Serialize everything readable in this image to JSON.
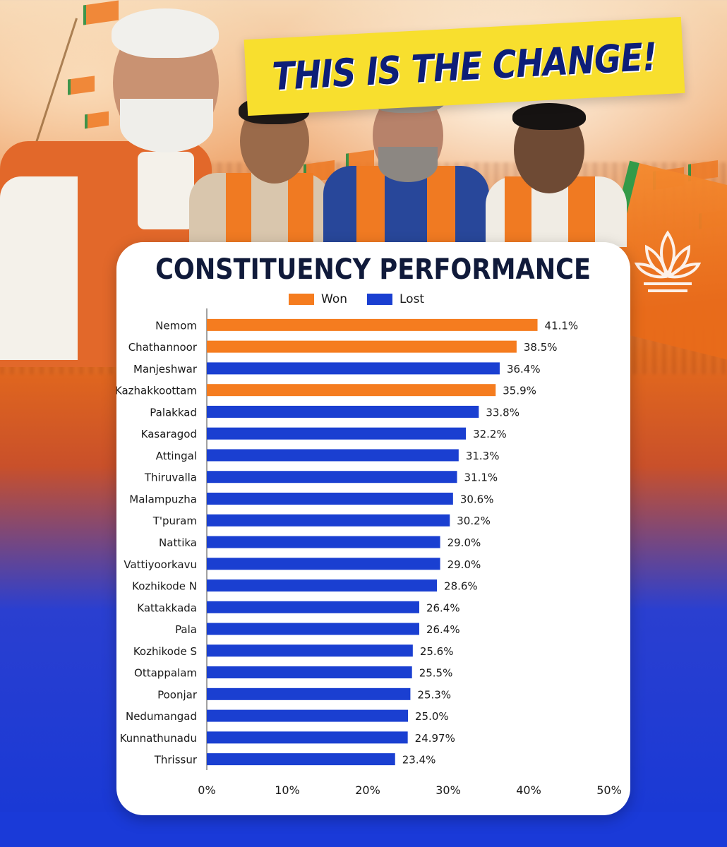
{
  "banner": {
    "text": "THIS IS THE CHANGE!"
  },
  "colors": {
    "won": "#f57c1f",
    "lost": "#1a3fd1",
    "banner_bg": "#f8df2e",
    "banner_text": "#0d1e78"
  },
  "chart_data": {
    "type": "bar",
    "orientation": "horizontal",
    "title": "CONSTITUENCY PERFORMANCE",
    "legend": [
      {
        "label": "Won",
        "color": "#f57c1f"
      },
      {
        "label": "Lost",
        "color": "#1a3fd1"
      }
    ],
    "legend_position": "top",
    "categories": [
      "Nemom",
      "Chathannoor",
      "Manjeshwar",
      "Kazhakkoottam",
      "Palakkad",
      "Kasaragod",
      "Attingal",
      "Thiruvalla",
      "Malampuzha",
      "T'puram",
      "Nattika",
      "Vattiyoorkavu",
      "Kozhikode N",
      "Kattakkada",
      "Pala",
      "Kozhikode S",
      "Ottappalam",
      "Poonjar",
      "Nedumangad",
      "Kunnathunadu",
      "Thrissur"
    ],
    "values": [
      41.1,
      38.5,
      36.4,
      35.9,
      33.8,
      32.2,
      31.3,
      31.1,
      30.6,
      30.2,
      29.0,
      29.0,
      28.6,
      26.4,
      26.4,
      25.6,
      25.5,
      25.3,
      25.0,
      24.97,
      23.4
    ],
    "value_labels": [
      "41.1%",
      "38.5%",
      "36.4%",
      "35.9%",
      "33.8%",
      "32.2%",
      "31.3%",
      "31.1%",
      "30.6%",
      "30.2%",
      "29.0%",
      "29.0%",
      "28.6%",
      "26.4%",
      "26.4%",
      "25.6%",
      "25.5%",
      "25.3%",
      "25.0%",
      "24.97%",
      "23.4%"
    ],
    "result": [
      "Won",
      "Won",
      "Lost",
      "Won",
      "Lost",
      "Lost",
      "Lost",
      "Lost",
      "Lost",
      "Lost",
      "Lost",
      "Lost",
      "Lost",
      "Lost",
      "Lost",
      "Lost",
      "Lost",
      "Lost",
      "Lost",
      "Lost",
      "Lost"
    ],
    "xlim": [
      0,
      50
    ],
    "xticks": [
      0,
      10,
      20,
      30,
      40,
      50
    ],
    "xtick_labels": [
      "0%",
      "10%",
      "20%",
      "30%",
      "40%",
      "50%"
    ],
    "grid": false
  }
}
